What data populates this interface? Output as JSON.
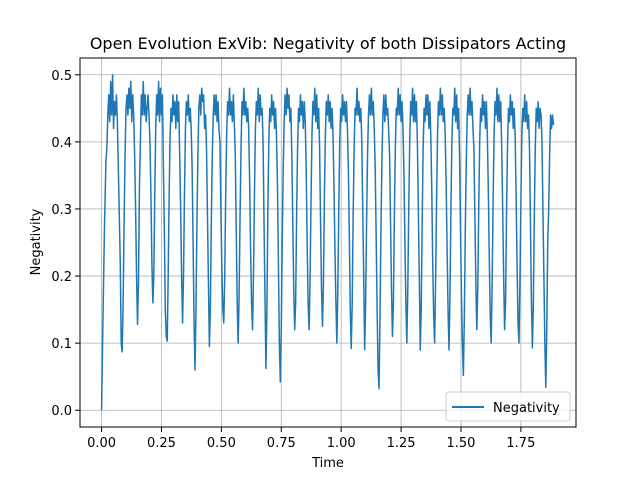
{
  "chart_data": {
    "type": "line",
    "title": "Open Evolution ExVib: Negativity of both Dissipators Acting",
    "xlabel": "Time",
    "ylabel": "Negativity",
    "xlim": [
      -0.09,
      1.98
    ],
    "ylim": [
      -0.025,
      0.525
    ],
    "xticks": [
      0.0,
      0.25,
      0.5,
      0.75,
      1.0,
      1.25,
      1.5,
      1.75
    ],
    "xtick_labels": [
      "0.00",
      "0.25",
      "0.50",
      "0.75",
      "1.00",
      "1.25",
      "1.50",
      "1.75"
    ],
    "yticks": [
      0.0,
      0.1,
      0.2,
      0.3,
      0.4,
      0.5
    ],
    "ytick_labels": [
      "0.0",
      "0.1",
      "0.2",
      "0.3",
      "0.4",
      "0.5"
    ],
    "grid": true,
    "legend": {
      "position": "lower-right",
      "entries": [
        "Negativity"
      ]
    },
    "colors": {
      "series": "#1f77b4",
      "grid": "#b0b0b0"
    },
    "series": [
      {
        "name": "Negativity",
        "x": [
          0.0,
          0.006,
          0.012,
          0.018,
          0.022,
          0.026,
          0.03,
          0.034,
          0.038,
          0.042,
          0.046,
          0.05,
          0.054,
          0.058,
          0.062,
          0.066,
          0.07,
          0.074,
          0.078,
          0.082,
          0.086,
          0.09,
          0.094,
          0.098,
          0.102,
          0.106,
          0.11,
          0.114,
          0.118,
          0.122,
          0.126,
          0.13,
          0.134,
          0.138,
          0.142,
          0.146,
          0.15,
          0.154,
          0.158,
          0.162,
          0.166,
          0.17,
          0.174,
          0.178,
          0.182,
          0.186,
          0.19,
          0.194,
          0.198,
          0.202,
          0.206,
          0.21,
          0.214,
          0.218,
          0.222,
          0.226,
          0.23,
          0.234,
          0.238,
          0.242,
          0.246,
          0.25,
          0.254,
          0.258,
          0.262,
          0.266,
          0.27,
          0.274,
          0.278,
          0.282,
          0.286,
          0.29,
          0.294,
          0.298,
          0.302,
          0.306,
          0.31,
          0.314,
          0.318,
          0.322,
          0.326,
          0.33,
          0.334,
          0.338,
          0.342,
          0.346,
          0.35,
          0.354,
          0.358,
          0.362,
          0.366,
          0.37,
          0.374,
          0.378,
          0.382,
          0.386,
          0.39,
          0.394,
          0.398,
          0.402,
          0.406,
          0.41,
          0.414,
          0.418,
          0.422,
          0.426,
          0.43,
          0.434,
          0.438,
          0.442,
          0.446,
          0.45,
          0.454,
          0.458,
          0.462,
          0.466,
          0.47,
          0.474,
          0.478,
          0.482,
          0.486,
          0.49,
          0.494,
          0.498,
          0.502,
          0.506,
          0.51,
          0.514,
          0.518,
          0.522,
          0.526,
          0.53,
          0.534,
          0.538,
          0.542,
          0.546,
          0.55,
          0.554,
          0.558,
          0.562,
          0.566,
          0.57,
          0.574,
          0.578,
          0.582,
          0.586,
          0.59,
          0.594,
          0.598,
          0.602,
          0.606,
          0.61,
          0.614,
          0.618,
          0.622,
          0.626,
          0.63,
          0.634,
          0.638,
          0.642,
          0.646,
          0.65,
          0.654,
          0.658,
          0.662,
          0.666,
          0.67,
          0.674,
          0.678,
          0.682,
          0.686,
          0.69,
          0.694,
          0.698,
          0.702,
          0.706,
          0.71,
          0.714,
          0.718,
          0.722,
          0.726,
          0.73,
          0.734,
          0.738,
          0.742,
          0.746,
          0.75,
          0.754,
          0.758,
          0.762,
          0.766,
          0.77,
          0.774,
          0.778,
          0.782,
          0.786,
          0.79,
          0.794,
          0.798,
          0.802,
          0.806,
          0.81,
          0.814,
          0.818,
          0.822,
          0.826,
          0.83,
          0.834,
          0.838,
          0.842,
          0.846,
          0.85,
          0.854,
          0.858,
          0.862,
          0.866,
          0.87,
          0.874,
          0.878,
          0.882,
          0.886,
          0.89,
          0.894,
          0.898,
          0.902,
          0.906,
          0.91,
          0.914,
          0.918,
          0.922,
          0.926,
          0.93,
          0.934,
          0.938,
          0.942,
          0.946,
          0.95,
          0.954,
          0.958,
          0.962,
          0.966,
          0.97,
          0.974,
          0.978,
          0.982,
          0.986,
          0.99,
          0.994,
          0.998,
          1.002,
          1.006,
          1.01,
          1.014,
          1.018,
          1.022,
          1.026,
          1.03,
          1.034,
          1.038,
          1.042,
          1.046,
          1.05,
          1.054,
          1.058,
          1.062,
          1.066,
          1.07,
          1.074,
          1.078,
          1.082,
          1.086,
          1.09,
          1.094,
          1.098,
          1.102,
          1.106,
          1.11,
          1.114,
          1.118,
          1.122,
          1.126,
          1.13,
          1.134,
          1.138,
          1.142,
          1.146,
          1.15,
          1.154,
          1.158,
          1.162,
          1.166,
          1.17,
          1.174,
          1.178,
          1.182,
          1.186,
          1.19,
          1.194,
          1.198,
          1.202,
          1.206,
          1.21,
          1.214,
          1.218,
          1.222,
          1.226,
          1.23,
          1.234,
          1.238,
          1.242,
          1.246,
          1.25,
          1.254,
          1.258,
          1.262,
          1.266,
          1.27,
          1.274,
          1.278,
          1.282,
          1.286,
          1.29,
          1.294,
          1.298,
          1.302,
          1.306,
          1.31,
          1.314,
          1.318,
          1.322,
          1.326,
          1.33,
          1.334,
          1.338,
          1.342,
          1.346,
          1.35,
          1.354,
          1.358,
          1.362,
          1.366,
          1.37,
          1.374,
          1.378,
          1.382,
          1.386,
          1.39,
          1.394,
          1.398,
          1.402,
          1.406,
          1.41,
          1.414,
          1.418,
          1.422,
          1.426,
          1.43,
          1.434,
          1.438,
          1.442,
          1.446,
          1.45,
          1.454,
          1.458,
          1.462,
          1.466,
          1.47,
          1.474,
          1.478,
          1.482,
          1.486,
          1.49,
          1.494,
          1.498,
          1.502,
          1.506,
          1.51,
          1.514,
          1.518,
          1.522,
          1.526,
          1.53,
          1.534,
          1.538,
          1.542,
          1.546,
          1.55,
          1.554,
          1.558,
          1.562,
          1.566,
          1.57,
          1.574,
          1.578,
          1.582,
          1.586,
          1.59,
          1.594,
          1.598,
          1.602,
          1.606,
          1.61,
          1.614,
          1.618,
          1.622,
          1.626,
          1.63,
          1.634,
          1.638,
          1.642,
          1.646,
          1.65,
          1.654,
          1.658,
          1.662,
          1.666,
          1.67,
          1.674,
          1.678,
          1.682,
          1.686,
          1.69,
          1.694,
          1.698,
          1.702,
          1.706,
          1.71,
          1.714,
          1.718,
          1.722,
          1.726,
          1.73,
          1.734,
          1.738,
          1.742,
          1.746,
          1.75,
          1.754,
          1.758,
          1.762,
          1.766,
          1.77,
          1.774,
          1.778,
          1.782,
          1.786,
          1.79,
          1.794,
          1.798,
          1.802,
          1.806,
          1.81,
          1.814,
          1.818,
          1.822,
          1.826,
          1.83,
          1.834,
          1.838,
          1.842,
          1.846,
          1.85,
          1.854,
          1.858,
          1.862,
          1.866,
          1.87,
          1.874,
          1.878,
          1.882,
          1.886
        ],
        "y": [
          0.0,
          0.14,
          0.27,
          0.37,
          0.39,
          0.44,
          0.47,
          0.43,
          0.49,
          0.44,
          0.5,
          0.42,
          0.46,
          0.44,
          0.47,
          0.43,
          0.36,
          0.29,
          0.22,
          0.1,
          0.087,
          0.16,
          0.28,
          0.38,
          0.45,
          0.47,
          0.44,
          0.48,
          0.45,
          0.49,
          0.43,
          0.47,
          0.44,
          0.38,
          0.3,
          0.2,
          0.128,
          0.19,
          0.33,
          0.4,
          0.47,
          0.44,
          0.49,
          0.44,
          0.47,
          0.43,
          0.45,
          0.47,
          0.44,
          0.4,
          0.32,
          0.22,
          0.16,
          0.2,
          0.32,
          0.42,
          0.47,
          0.44,
          0.49,
          0.43,
          0.48,
          0.44,
          0.47,
          0.36,
          0.27,
          0.15,
          0.11,
          0.103,
          0.2,
          0.32,
          0.41,
          0.45,
          0.43,
          0.47,
          0.44,
          0.46,
          0.42,
          0.47,
          0.43,
          0.46,
          0.38,
          0.3,
          0.2,
          0.13,
          0.2,
          0.32,
          0.42,
          0.46,
          0.44,
          0.47,
          0.43,
          0.45,
          0.42,
          0.36,
          0.25,
          0.13,
          0.06,
          0.15,
          0.28,
          0.38,
          0.45,
          0.47,
          0.44,
          0.48,
          0.46,
          0.47,
          0.42,
          0.44,
          0.39,
          0.29,
          0.19,
          0.095,
          0.15,
          0.28,
          0.38,
          0.44,
          0.47,
          0.44,
          0.47,
          0.43,
          0.46,
          0.42,
          0.4,
          0.3,
          0.21,
          0.15,
          0.13,
          0.2,
          0.32,
          0.41,
          0.46,
          0.44,
          0.48,
          0.44,
          0.46,
          0.43,
          0.47,
          0.43,
          0.38,
          0.27,
          0.16,
          0.1,
          0.17,
          0.29,
          0.39,
          0.46,
          0.44,
          0.48,
          0.44,
          0.46,
          0.43,
          0.45,
          0.42,
          0.34,
          0.24,
          0.16,
          0.12,
          0.2,
          0.32,
          0.42,
          0.46,
          0.44,
          0.48,
          0.43,
          0.47,
          0.44,
          0.45,
          0.4,
          0.28,
          0.17,
          0.062,
          0.15,
          0.3,
          0.4,
          0.45,
          0.43,
          0.47,
          0.44,
          0.46,
          0.42,
          0.45,
          0.41,
          0.34,
          0.22,
          0.1,
          0.042,
          0.12,
          0.25,
          0.36,
          0.43,
          0.47,
          0.44,
          0.48,
          0.45,
          0.47,
          0.43,
          0.45,
          0.38,
          0.28,
          0.18,
          0.12,
          0.16,
          0.29,
          0.39,
          0.45,
          0.43,
          0.47,
          0.44,
          0.46,
          0.42,
          0.46,
          0.43,
          0.36,
          0.25,
          0.16,
          0.12,
          0.19,
          0.31,
          0.41,
          0.46,
          0.44,
          0.48,
          0.43,
          0.47,
          0.42,
          0.45,
          0.39,
          0.28,
          0.18,
          0.125,
          0.19,
          0.32,
          0.41,
          0.46,
          0.44,
          0.47,
          0.43,
          0.46,
          0.42,
          0.45,
          0.41,
          0.33,
          0.24,
          0.16,
          0.1,
          0.18,
          0.3,
          0.4,
          0.45,
          0.43,
          0.47,
          0.44,
          0.46,
          0.43,
          0.46,
          0.42,
          0.36,
          0.26,
          0.15,
          0.092,
          0.16,
          0.29,
          0.39,
          0.45,
          0.44,
          0.48,
          0.44,
          0.46,
          0.43,
          0.45,
          0.4,
          0.3,
          0.2,
          0.09,
          0.16,
          0.28,
          0.38,
          0.44,
          0.47,
          0.44,
          0.48,
          0.44,
          0.46,
          0.42,
          0.36,
          0.26,
          0.15,
          0.06,
          0.032,
          0.14,
          0.27,
          0.37,
          0.44,
          0.47,
          0.43,
          0.47,
          0.44,
          0.45,
          0.42,
          0.38,
          0.28,
          0.18,
          0.11,
          0.16,
          0.29,
          0.39,
          0.45,
          0.44,
          0.48,
          0.44,
          0.47,
          0.43,
          0.46,
          0.42,
          0.35,
          0.25,
          0.16,
          0.1,
          0.18,
          0.3,
          0.4,
          0.46,
          0.44,
          0.48,
          0.43,
          0.47,
          0.43,
          0.46,
          0.4,
          0.3,
          0.2,
          0.09,
          0.15,
          0.28,
          0.39,
          0.45,
          0.43,
          0.47,
          0.44,
          0.47,
          0.42,
          0.46,
          0.41,
          0.33,
          0.22,
          0.14,
          0.1,
          0.19,
          0.31,
          0.41,
          0.46,
          0.44,
          0.48,
          0.44,
          0.47,
          0.43,
          0.45,
          0.41,
          0.34,
          0.24,
          0.15,
          0.09,
          0.17,
          0.3,
          0.4,
          0.45,
          0.44,
          0.48,
          0.43,
          0.47,
          0.42,
          0.45,
          0.38,
          0.27,
          0.17,
          0.1,
          0.052,
          0.14,
          0.27,
          0.37,
          0.44,
          0.47,
          0.44,
          0.48,
          0.44,
          0.46,
          0.42,
          0.39,
          0.29,
          0.19,
          0.12,
          0.18,
          0.3,
          0.4,
          0.45,
          0.43,
          0.47,
          0.44,
          0.46,
          0.42,
          0.46,
          0.41,
          0.33,
          0.23,
          0.14,
          0.1,
          0.19,
          0.31,
          0.41,
          0.46,
          0.44,
          0.48,
          0.43,
          0.47,
          0.43,
          0.46,
          0.39,
          0.3,
          0.2,
          0.12,
          0.16,
          0.29,
          0.39,
          0.45,
          0.43,
          0.47,
          0.44,
          0.46,
          0.42,
          0.45,
          0.41,
          0.32,
          0.22,
          0.13,
          0.1,
          0.19,
          0.31,
          0.41,
          0.45,
          0.43,
          0.47,
          0.43,
          0.46,
          0.42,
          0.44,
          0.39,
          0.28,
          0.16,
          0.093,
          0.16,
          0.29,
          0.39,
          0.45,
          0.43,
          0.46,
          0.42,
          0.45,
          0.44,
          0.4,
          0.3,
          0.2,
          0.1,
          0.034,
          0.12,
          0.25,
          0.3,
          0.38,
          0.44,
          0.42,
          0.44,
          0.425
        ]
      }
    ]
  }
}
